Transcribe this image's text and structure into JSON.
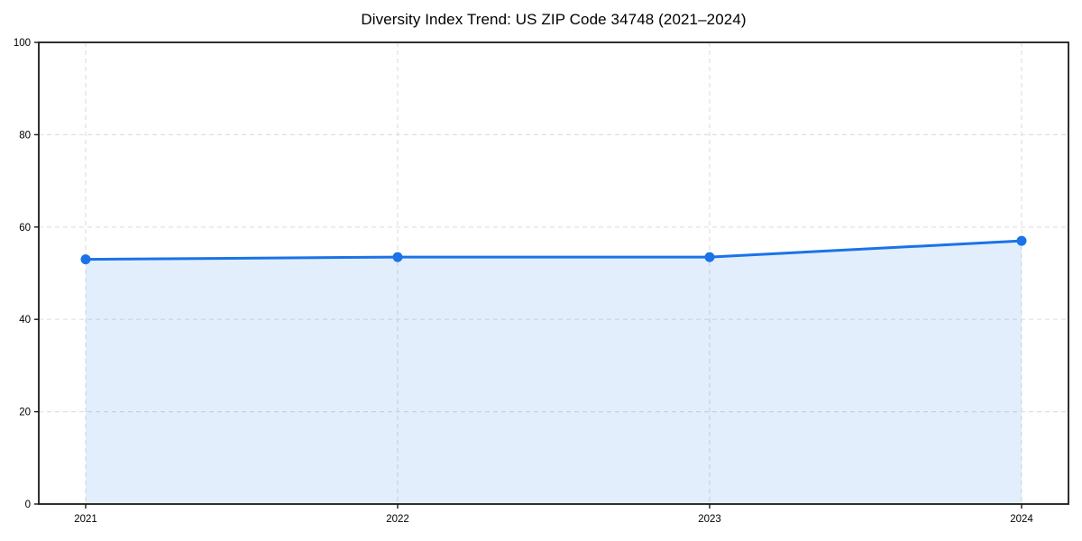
{
  "chart_data": {
    "type": "area",
    "title": "Diversity Index Trend: US ZIP Code 34748 (2021–2024)",
    "categories": [
      "2021",
      "2022",
      "2023",
      "2024"
    ],
    "series": [
      {
        "name": "Diversity Index",
        "values": [
          53,
          53.5,
          53.5,
          57
        ]
      }
    ],
    "xlabel": "",
    "ylabel": "",
    "ylim": [
      0,
      100
    ],
    "yticks": [
      0,
      20,
      40,
      60,
      80,
      100
    ],
    "grid": true,
    "grid_style": "dashed",
    "legend": "none",
    "colors": {
      "line": "#1a73e8",
      "marker": "#1a73e8",
      "fill": "rgba(26,115,232,0.12)",
      "gridline": "#e0e0e0",
      "spine": "#1a1a1a",
      "tick_label": "#000000",
      "background": "#ffffff"
    }
  }
}
